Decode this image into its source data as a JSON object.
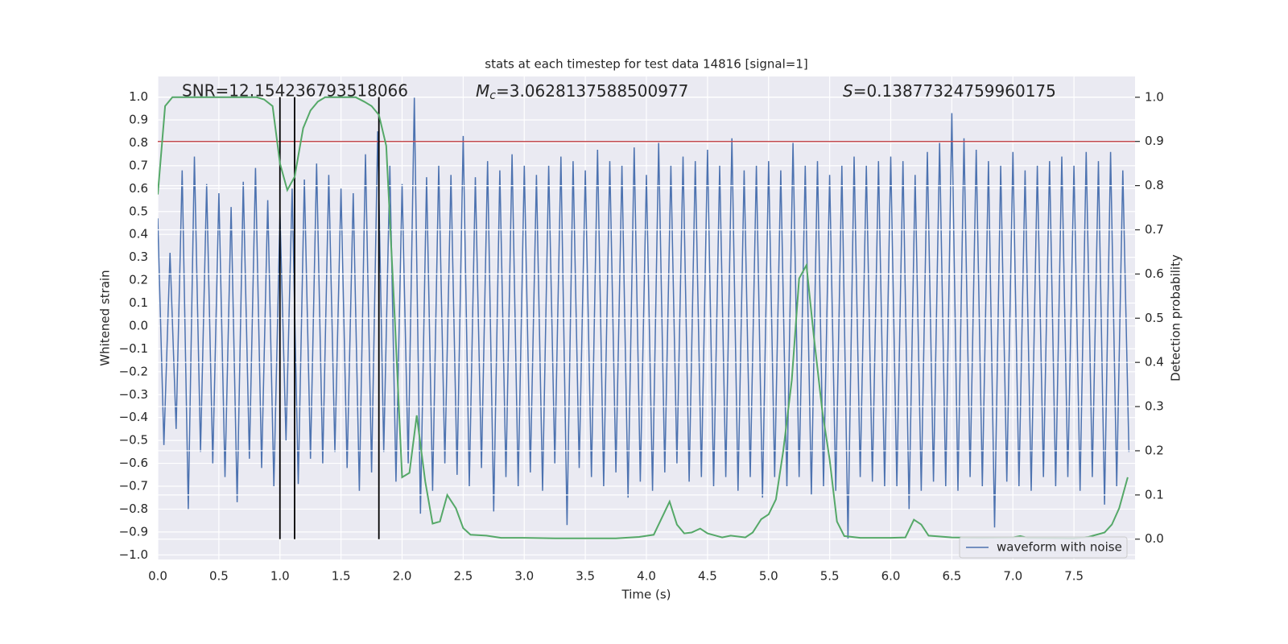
{
  "chart_data": {
    "type": "line",
    "title": "stats at each timestep for test data 14816 [signal=1]",
    "xlabel": "Time (s)",
    "ylabel": "Whitened strain",
    "y2label": "Detection probability",
    "annotations": [
      {
        "text": "SNR=12.154236793518066"
      },
      {
        "symbol": "M",
        "sub": "c",
        "text": "=3.0628137588500977"
      },
      {
        "symbol": "S",
        "text": "=0.13877324759960175"
      }
    ],
    "xlim": [
      0,
      8
    ],
    "ylim": [
      -1.02,
      1.09
    ],
    "y2lim": [
      -0.046,
      1.047
    ],
    "xticks": [
      {
        "value": 0,
        "label": "0.0"
      },
      0.5,
      {
        "value": 1,
        "label": "1.0"
      },
      1.5,
      {
        "value": 2,
        "label": "2.0"
      },
      2.5,
      {
        "value": 3,
        "label": "3.0"
      },
      3.5,
      {
        "value": 4,
        "label": "4.0"
      },
      4.5,
      {
        "value": 5,
        "label": "5.0"
      },
      5.5,
      {
        "value": 6,
        "label": "6.0"
      },
      6.5,
      {
        "value": 7,
        "label": "7.0"
      },
      7.5
    ],
    "yticks": [
      {
        "value": -1,
        "label": "−1.0"
      },
      {
        "value": -0.9,
        "label": "−0.9"
      },
      {
        "value": -0.8,
        "label": "−0.8"
      },
      {
        "value": -0.7,
        "label": "−0.7"
      },
      {
        "value": -0.6,
        "label": "−0.6"
      },
      {
        "value": -0.5,
        "label": "−0.5"
      },
      {
        "value": -0.4,
        "label": "−0.4"
      },
      {
        "value": -0.3,
        "label": "−0.3"
      },
      {
        "value": -0.2,
        "label": "−0.2"
      },
      {
        "value": -0.1,
        "label": "−0.1"
      },
      {
        "value": 0,
        "label": "0.0"
      },
      0.1,
      0.2,
      0.3,
      0.4,
      0.5,
      0.6,
      0.7,
      0.8,
      0.9,
      {
        "value": 1,
        "label": "1.0"
      }
    ],
    "y2ticks": [
      {
        "value": 0,
        "label": "0.0"
      },
      0.1,
      0.2,
      0.3,
      0.4,
      0.5,
      0.6,
      0.7,
      0.8,
      0.9,
      {
        "value": 1,
        "label": "1.0"
      }
    ],
    "grid": true,
    "legend": "lower right",
    "vlines": {
      "x": [
        1.0,
        1.12,
        1.81
      ],
      "color": "#000000"
    },
    "hlines": [
      {
        "value": 0.9,
        "axis": "y2",
        "color": "#c44e52"
      }
    ],
    "series": [
      {
        "name": "waveform with noise",
        "color": "#4c72b0",
        "x": [
          0,
          0.05,
          0.1,
          0.15,
          0.2,
          0.25,
          0.3,
          0.35,
          0.4,
          0.45,
          0.5,
          0.55,
          0.6,
          0.65,
          0.7,
          0.75,
          0.8,
          0.85,
          0.9,
          0.95,
          1,
          1.05,
          1.1,
          1.15,
          1.2,
          1.25,
          1.3,
          1.35,
          1.4,
          1.45,
          1.5,
          1.55,
          1.6,
          1.65,
          1.7,
          1.75,
          1.8,
          1.85,
          1.9,
          1.95,
          2,
          2.05,
          2.1,
          2.15,
          2.2,
          2.25,
          2.3,
          2.35,
          2.4,
          2.45,
          2.5,
          2.55,
          2.6,
          2.65,
          2.7,
          2.75,
          2.8,
          2.85,
          2.9,
          2.95,
          3,
          3.05,
          3.1,
          3.15,
          3.2,
          3.25,
          3.3,
          3.35,
          3.4,
          3.45,
          3.5,
          3.55,
          3.6,
          3.65,
          3.7,
          3.75,
          3.8,
          3.85,
          3.9,
          3.95,
          4,
          4.05,
          4.1,
          4.15,
          4.2,
          4.25,
          4.3,
          4.35,
          4.4,
          4.45,
          4.5,
          4.55,
          4.6,
          4.65,
          4.7,
          4.75,
          4.8,
          4.85,
          4.9,
          4.95,
          5,
          5.05,
          5.1,
          5.15,
          5.2,
          5.25,
          5.3,
          5.35,
          5.4,
          5.45,
          5.5,
          5.55,
          5.6,
          5.65,
          5.7,
          5.75,
          5.8,
          5.85,
          5.9,
          5.95,
          6,
          6.05,
          6.1,
          6.15,
          6.2,
          6.25,
          6.3,
          6.35,
          6.4,
          6.45,
          6.5,
          6.55,
          6.6,
          6.65,
          6.7,
          6.75,
          6.8,
          6.85,
          6.9,
          6.95,
          7,
          7.05,
          7.1,
          7.15,
          7.2,
          7.25,
          7.3,
          7.35,
          7.4,
          7.45,
          7.5,
          7.55,
          7.6,
          7.65,
          7.7,
          7.75,
          7.8,
          7.85,
          7.9,
          7.95
        ],
        "values": [
          0.47,
          -0.52,
          0.32,
          -0.45,
          0.68,
          -0.8,
          0.74,
          -0.55,
          0.62,
          -0.6,
          0.58,
          -0.66,
          0.52,
          -0.77,
          0.63,
          -0.58,
          0.69,
          -0.62,
          0.55,
          -0.7,
          0.49,
          -0.5,
          0.6,
          -0.69,
          0.64,
          -0.58,
          0.71,
          -0.6,
          0.66,
          -0.55,
          0.6,
          -0.62,
          0.58,
          -0.72,
          0.75,
          -0.64,
          0.85,
          -0.55,
          0.7,
          -0.68,
          0.62,
          -0.6,
          1.0,
          -0.82,
          0.65,
          -0.72,
          0.7,
          -0.6,
          0.66,
          -0.65,
          0.83,
          -0.7,
          0.65,
          -0.62,
          0.72,
          -0.81,
          0.68,
          -0.66,
          0.75,
          -0.7,
          0.7,
          -0.64,
          0.66,
          -0.72,
          0.7,
          -0.6,
          0.74,
          -0.87,
          0.72,
          -0.62,
          0.68,
          -0.66,
          0.77,
          -0.7,
          0.72,
          -0.64,
          0.7,
          -0.75,
          0.78,
          -0.68,
          0.66,
          -0.72,
          0.8,
          -0.64,
          0.7,
          -0.6,
          0.74,
          -0.68,
          0.72,
          -0.66,
          0.77,
          -0.7,
          0.7,
          -0.66,
          0.82,
          -0.72,
          0.68,
          -0.66,
          0.7,
          -0.75,
          0.72,
          -0.66,
          0.68,
          -0.7,
          0.8,
          -0.66,
          0.7,
          -0.74,
          0.72,
          -0.7,
          0.66,
          -0.72,
          0.7,
          -0.93,
          0.74,
          -0.66,
          0.7,
          -0.68,
          0.72,
          -0.7,
          0.74,
          -0.7,
          0.72,
          -0.8,
          0.66,
          -0.72,
          0.76,
          -0.68,
          0.8,
          -0.7,
          0.93,
          -0.72,
          0.82,
          -0.66,
          0.77,
          -0.7,
          0.72,
          -0.88,
          0.7,
          -0.68,
          0.76,
          -0.7,
          0.68,
          -0.72,
          0.7,
          -0.66,
          0.72,
          -0.7,
          0.74,
          -0.66,
          0.7,
          -0.72,
          0.76,
          -0.66,
          0.72,
          -0.78,
          0.76,
          -0.7,
          0.68,
          -0.55
        ]
      },
      {
        "color": "#55a868",
        "axis": "y2",
        "x": [
          0,
          0.06,
          0.12,
          0.19,
          0.25,
          0.31,
          0.37,
          0.44,
          0.5,
          0.56,
          0.62,
          0.69,
          0.75,
          0.81,
          0.87,
          0.94,
          1.0,
          1.06,
          1.12,
          1.19,
          1.25,
          1.31,
          1.37,
          1.44,
          1.5,
          1.56,
          1.62,
          1.69,
          1.75,
          1.81,
          1.87,
          1.94,
          2.0,
          2.06,
          2.12,
          2.19,
          2.25,
          2.31,
          2.37,
          2.44,
          2.5,
          2.56,
          2.69,
          2.81,
          3.0,
          3.25,
          3.5,
          3.75,
          3.94,
          4.06,
          4.19,
          4.25,
          4.31,
          4.37,
          4.44,
          4.5,
          4.62,
          4.69,
          4.81,
          4.87,
          4.94,
          5.0,
          5.06,
          5.12,
          5.19,
          5.25,
          5.31,
          5.37,
          5.44,
          5.5,
          5.56,
          5.62,
          5.75,
          6.0,
          6.12,
          6.19,
          6.25,
          6.31,
          6.5,
          6.75,
          7.0,
          7.06,
          7.12,
          7.5,
          7.62,
          7.75,
          7.81,
          7.87,
          7.94
        ],
        "values": [
          0.78,
          0.98,
          1.0,
          1.0,
          1.0,
          1.0,
          1.0,
          1.0,
          1.0,
          1.0,
          1.0,
          1.0,
          1.0,
          1.0,
          0.995,
          0.98,
          0.85,
          0.79,
          0.82,
          0.93,
          0.97,
          0.99,
          1.0,
          1.0,
          1.0,
          1.0,
          1.0,
          0.99,
          0.98,
          0.96,
          0.89,
          0.5,
          0.14,
          0.15,
          0.28,
          0.13,
          0.035,
          0.04,
          0.1,
          0.07,
          0.025,
          0.01,
          0.008,
          0.003,
          0.003,
          0.002,
          0.002,
          0.002,
          0.005,
          0.01,
          0.085,
          0.033,
          0.013,
          0.015,
          0.024,
          0.013,
          0.004,
          0.008,
          0.004,
          0.015,
          0.045,
          0.056,
          0.09,
          0.2,
          0.36,
          0.59,
          0.62,
          0.46,
          0.29,
          0.18,
          0.04,
          0.007,
          0.003,
          0.003,
          0.004,
          0.044,
          0.033,
          0.008,
          0.004,
          0.003,
          0.004,
          0.007,
          0.003,
          0.002,
          0.005,
          0.015,
          0.033,
          0.07,
          0.14
        ]
      }
    ]
  }
}
